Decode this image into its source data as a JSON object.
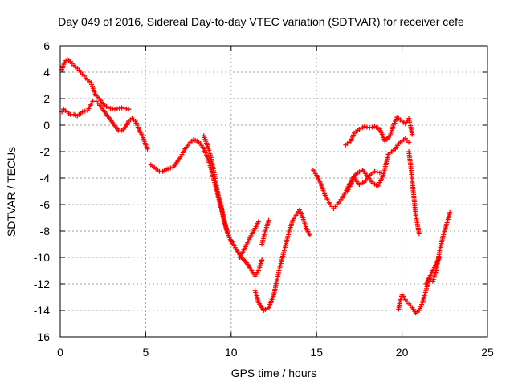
{
  "chart_data": {
    "type": "scatter",
    "title": "Day 049 of 2016, Sidereal Day-to-day VTEC variation (SDTVAR) for receiver cefe",
    "xlabel": "GPS time / hours",
    "ylabel": "SDTVAR / TECUs",
    "xlim": [
      0,
      25
    ],
    "ylim": [
      -16,
      6
    ],
    "xticks": [
      0,
      5,
      10,
      15,
      20,
      25
    ],
    "yticks": [
      -16,
      -14,
      -12,
      -10,
      -8,
      -6,
      -4,
      -2,
      0,
      2,
      4,
      6
    ],
    "grid": true,
    "legend": "none",
    "marker": "+",
    "color": "#ff0000",
    "series": [
      {
        "x": [
          0.1,
          0.2,
          0.4,
          0.6,
          0.8,
          1.0,
          1.2,
          1.4,
          1.6,
          1.8,
          2.0,
          2.1,
          2.3,
          2.5,
          2.8,
          3.2,
          3.6,
          4.0
        ],
        "values": [
          4.2,
          4.6,
          5.0,
          4.8,
          4.5,
          4.3,
          4.0,
          3.7,
          3.4,
          3.2,
          2.5,
          2.2,
          2.0,
          1.6,
          1.3,
          1.2,
          1.3,
          1.2
        ]
      },
      {
        "x": [
          0.1,
          0.2,
          0.4,
          0.6,
          0.8,
          1.0,
          1.3,
          1.6,
          1.9,
          2.1,
          2.3,
          2.6,
          3.0,
          3.4,
          3.6,
          3.8,
          4.0,
          4.2,
          4.4,
          4.6,
          4.8,
          5.0,
          5.1
        ],
        "values": [
          1.0,
          1.2,
          1.0,
          0.8,
          0.8,
          0.7,
          1.0,
          1.1,
          1.8,
          1.8,
          1.5,
          1.0,
          0.3,
          -0.4,
          -0.4,
          -0.2,
          0.3,
          0.5,
          0.3,
          -0.3,
          -0.8,
          -1.5,
          -1.8
        ]
      },
      {
        "x": [
          5.3,
          5.5,
          5.8,
          6.0,
          6.3,
          6.6,
          7.0,
          7.3,
          7.6,
          7.8,
          8.0,
          8.2,
          8.4,
          8.6,
          8.8,
          9.0,
          9.2,
          9.4,
          9.6,
          9.8,
          10.0
        ],
        "values": [
          -3.0,
          -3.2,
          -3.5,
          -3.5,
          -3.3,
          -3.2,
          -2.5,
          -1.8,
          -1.3,
          -1.1,
          -1.2,
          -1.4,
          -1.8,
          -2.4,
          -3.2,
          -4.2,
          -5.2,
          -6.2,
          -7.3,
          -8.2,
          -8.8
        ]
      },
      {
        "x": [
          10.0,
          10.3,
          10.6,
          10.9,
          11.2,
          11.4,
          11.6,
          11.8
        ],
        "values": [
          -8.7,
          -9.4,
          -10.0,
          -10.4,
          -11.0,
          -11.4,
          -11.0,
          -10.2
        ]
      },
      {
        "x": [
          10.5,
          10.8,
          11.1,
          11.4,
          11.6
        ],
        "values": [
          -10.0,
          -9.3,
          -8.5,
          -7.8,
          -7.3
        ]
      },
      {
        "x": [
          8.4,
          8.6,
          8.8,
          9.0,
          9.2,
          9.4,
          9.6,
          9.8
        ],
        "values": [
          -0.8,
          -1.5,
          -2.3,
          -3.6,
          -5.0,
          -6.0,
          -7.2,
          -8.2
        ]
      },
      {
        "x": [
          11.4,
          11.6,
          11.9,
          12.2,
          12.5,
          12.8,
          13.1,
          13.4,
          13.6,
          13.8,
          14.0,
          14.2,
          14.4,
          14.6
        ],
        "values": [
          -12.5,
          -13.4,
          -14.0,
          -13.8,
          -12.8,
          -11.0,
          -9.5,
          -8.0,
          -7.2,
          -6.8,
          -6.4,
          -7.0,
          -7.8,
          -8.3
        ]
      },
      {
        "x": [
          11.8,
          12.0,
          12.2
        ],
        "values": [
          -9.0,
          -8.0,
          -7.2
        ]
      },
      {
        "x": [
          14.8,
          15.0,
          15.2,
          15.5,
          15.8,
          16.0,
          16.2,
          16.5,
          16.8,
          17.1,
          17.4,
          17.7,
          18.0,
          18.3,
          18.6,
          18.9,
          19.2,
          19.4,
          19.6,
          19.8,
          20.0,
          20.2,
          20.4
        ],
        "values": [
          -3.4,
          -3.8,
          -4.3,
          -5.3,
          -6.0,
          -6.3,
          -6.0,
          -5.5,
          -4.8,
          -4.0,
          -3.6,
          -3.4,
          -3.9,
          -4.4,
          -4.6,
          -3.8,
          -2.2,
          -2.0,
          -1.8,
          -1.4,
          -1.2,
          -1.0,
          -1.3
        ]
      },
      {
        "x": [
          16.7,
          17.0,
          17.2,
          17.5,
          17.8,
          18.1,
          18.4,
          18.7,
          19.0,
          19.3,
          19.5,
          19.7,
          20.0,
          20.2,
          20.4,
          20.6
        ],
        "values": [
          -1.5,
          -1.2,
          -0.6,
          -0.3,
          -0.1,
          -0.2,
          -0.1,
          -0.3,
          -1.2,
          -0.8,
          0.0,
          0.6,
          0.3,
          0.1,
          0.5,
          -0.7
        ]
      },
      {
        "x": [
          20.4,
          20.5,
          20.6,
          20.7,
          20.8,
          20.9,
          21.0
        ],
        "values": [
          -2.0,
          -3.0,
          -4.3,
          -5.5,
          -6.8,
          -7.5,
          -8.2
        ]
      },
      {
        "x": [
          16.8,
          17.0,
          17.2,
          17.5,
          17.8,
          18.1,
          18.4,
          18.7
        ],
        "values": [
          -5.0,
          -4.5,
          -4.0,
          -4.5,
          -4.3,
          -3.8,
          -3.5,
          -3.6
        ]
      },
      {
        "x": [
          19.8,
          19.9,
          20.0,
          20.2,
          20.4,
          20.6,
          20.8,
          21.0,
          21.2,
          21.4,
          21.6,
          21.8,
          22.0,
          22.2,
          22.4,
          22.6,
          22.8
        ],
        "values": [
          -13.9,
          -13.2,
          -12.8,
          -13.2,
          -13.5,
          -13.8,
          -14.2,
          -14.0,
          -13.4,
          -12.5,
          -11.5,
          -11.8,
          -11.0,
          -9.5,
          -8.4,
          -7.5,
          -6.6
        ]
      },
      {
        "x": [
          21.4,
          21.6,
          21.8,
          22.0,
          22.2
        ],
        "values": [
          -12.0,
          -11.5,
          -11.0,
          -10.5,
          -10.0
        ]
      }
    ]
  }
}
